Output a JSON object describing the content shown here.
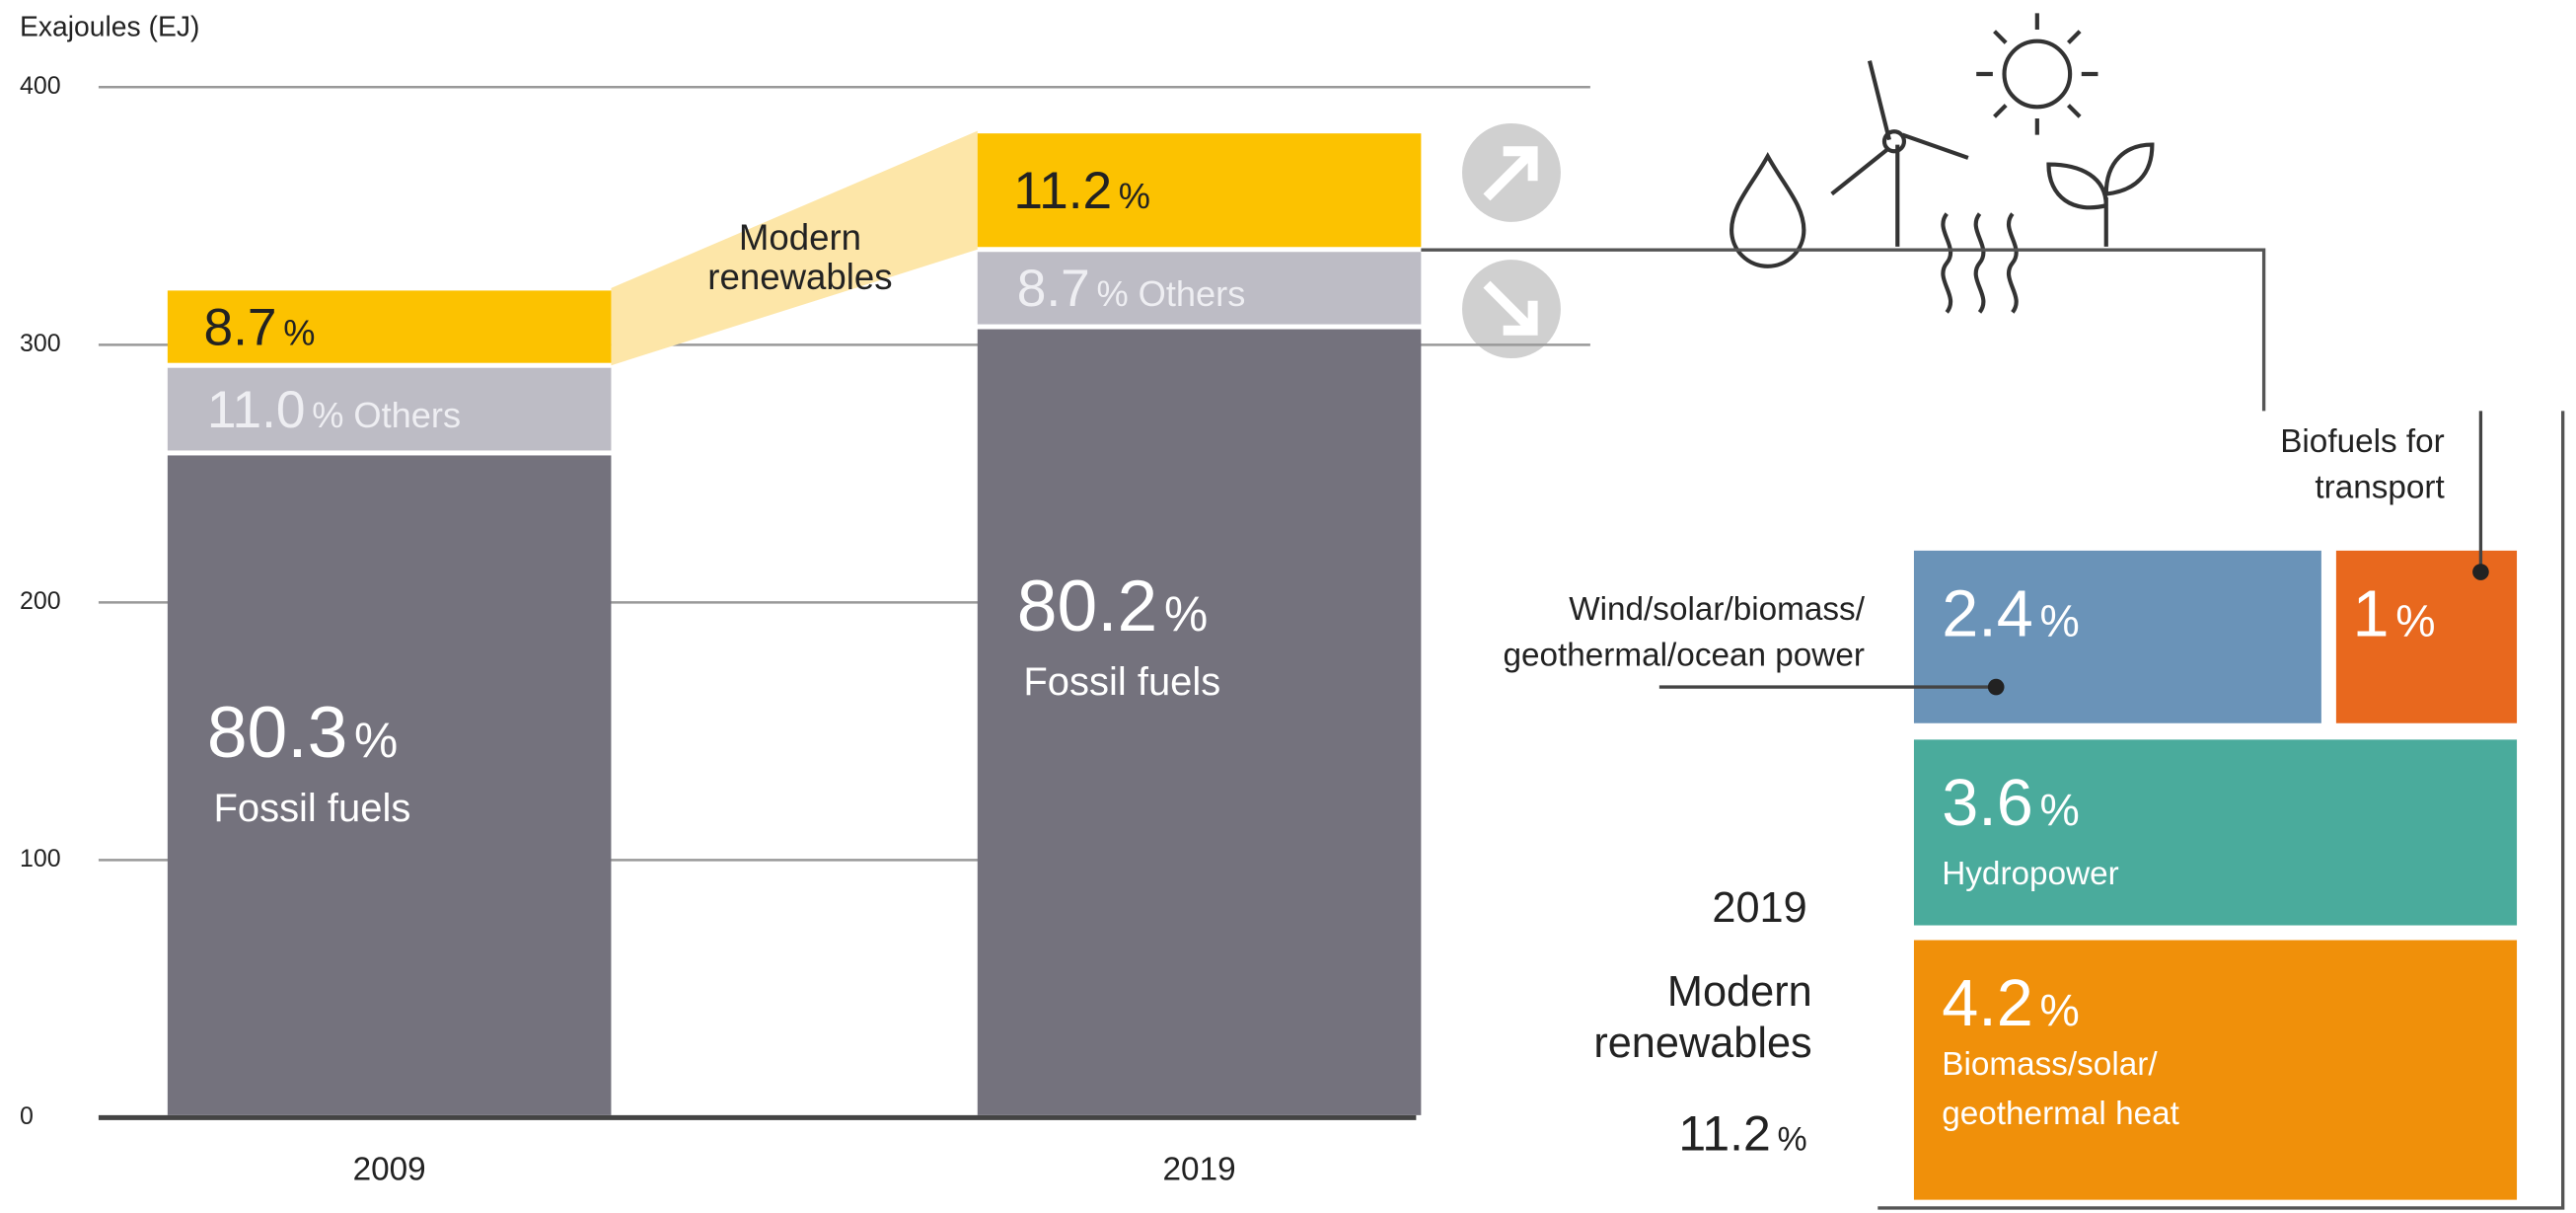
{
  "chart_data": {
    "type": "stacked-bar",
    "y_label": "Exajoules (EJ)",
    "categories": [
      "2009",
      "2019"
    ],
    "ylim": [
      0,
      400
    ],
    "yticks": [
      0,
      100,
      200,
      300,
      400
    ],
    "grid": true,
    "share_unit": "%",
    "series": [
      {
        "name": "Fossil fuels",
        "color": "#74727d",
        "values": [
          258,
          307
        ],
        "shares": [
          80.3,
          80.2
        ]
      },
      {
        "name": "Others",
        "color": "#bdbcc5",
        "values": [
          34,
          30
        ],
        "shares": [
          11.0,
          8.7
        ],
        "share_labels": [
          "11.0",
          "8.7"
        ]
      },
      {
        "name": "Modern renewables",
        "color": "#fcc200",
        "values": [
          30,
          46
        ],
        "shares": [
          8.7,
          11.2
        ]
      }
    ],
    "annotation": [
      "Modern",
      "renewables"
    ],
    "breakdown": {
      "year": "2019",
      "title": [
        "Modern",
        "renewables"
      ],
      "total": 11.2,
      "items": [
        {
          "label": [
            "Wind/solar/biomass/",
            "geothermal/ocean power"
          ],
          "value": 2.4,
          "color": "#6a93b8"
        },
        {
          "label": [
            "Biofuels for",
            "transport"
          ],
          "value": 1.0,
          "color": "#e8681e"
        },
        {
          "label": [
            "Hydropower"
          ],
          "value": 3.6,
          "color": "#4aab9c"
        },
        {
          "label": [
            "Biomass/solar/",
            "geothermal heat"
          ],
          "value": 4.2,
          "color": "#f0900a"
        }
      ]
    }
  }
}
